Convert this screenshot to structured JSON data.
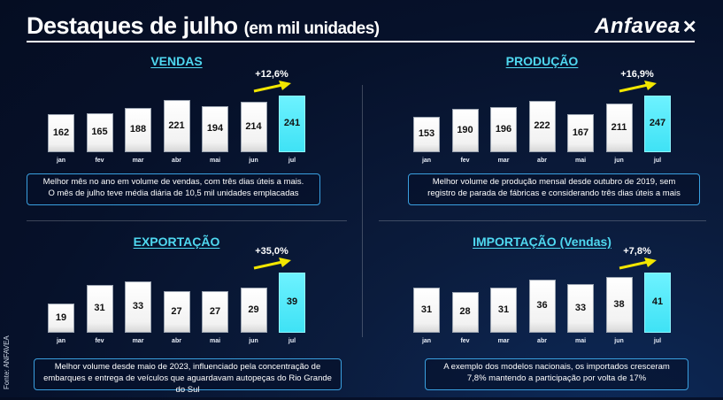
{
  "header": {
    "title": "Destaques de julho",
    "subtitle": "(em mil unidades)",
    "logo_text": "Anfavea",
    "source": "Fonte: ANFAVEA"
  },
  "colors": {
    "highlight": "#3fe2f5",
    "title_accent": "#4fd8f0",
    "arrow": "#f2e600"
  },
  "chart_data": [
    {
      "type": "bar",
      "title": "VENDAS",
      "categories": [
        "jan",
        "fev",
        "mar",
        "abr",
        "mai",
        "jun",
        "jul"
      ],
      "values": [
        162,
        165,
        188,
        221,
        194,
        214,
        241
      ],
      "growth_label": "+12,6%",
      "note": [
        "Melhor mês no ano em volume de vendas, com três dias úteis a mais.",
        "O mês de julho teve média diária de 10,5 mil unidades emplacadas"
      ]
    },
    {
      "type": "bar",
      "title": "PRODUÇÃO",
      "categories": [
        "jan",
        "fev",
        "mar",
        "abr",
        "mai",
        "jun",
        "jul"
      ],
      "values": [
        153,
        190,
        196,
        222,
        167,
        211,
        247
      ],
      "growth_label": "+16,9%",
      "note": [
        "Melhor volume de produção mensal desde outubro de 2019, sem",
        "registro de parada de fábricas e considerando três dias úteis a mais"
      ]
    },
    {
      "type": "bar",
      "title": "EXPORTAÇÃO",
      "categories": [
        "jan",
        "fev",
        "mar",
        "abr",
        "mai",
        "jun",
        "jul"
      ],
      "values": [
        19,
        31,
        33,
        27,
        27,
        29,
        39
      ],
      "growth_label": "+35,0%",
      "note": [
        "Melhor volume desde maio de 2023, influenciado pela concentração de",
        "embarques e entrega de veículos que aguardavam autopeças do Rio Grande do Sul"
      ]
    },
    {
      "type": "bar",
      "title": "IMPORTAÇÃO (Vendas)",
      "categories": [
        "jan",
        "fev",
        "mar",
        "abr",
        "mai",
        "jun",
        "jul"
      ],
      "values": [
        31,
        28,
        31,
        36,
        33,
        38,
        41
      ],
      "growth_label": "+7,8%",
      "note": [
        "A exemplo dos modelos nacionais, os importados cresceram",
        "7,8%  mantendo a participação por volta de 17%"
      ]
    }
  ]
}
